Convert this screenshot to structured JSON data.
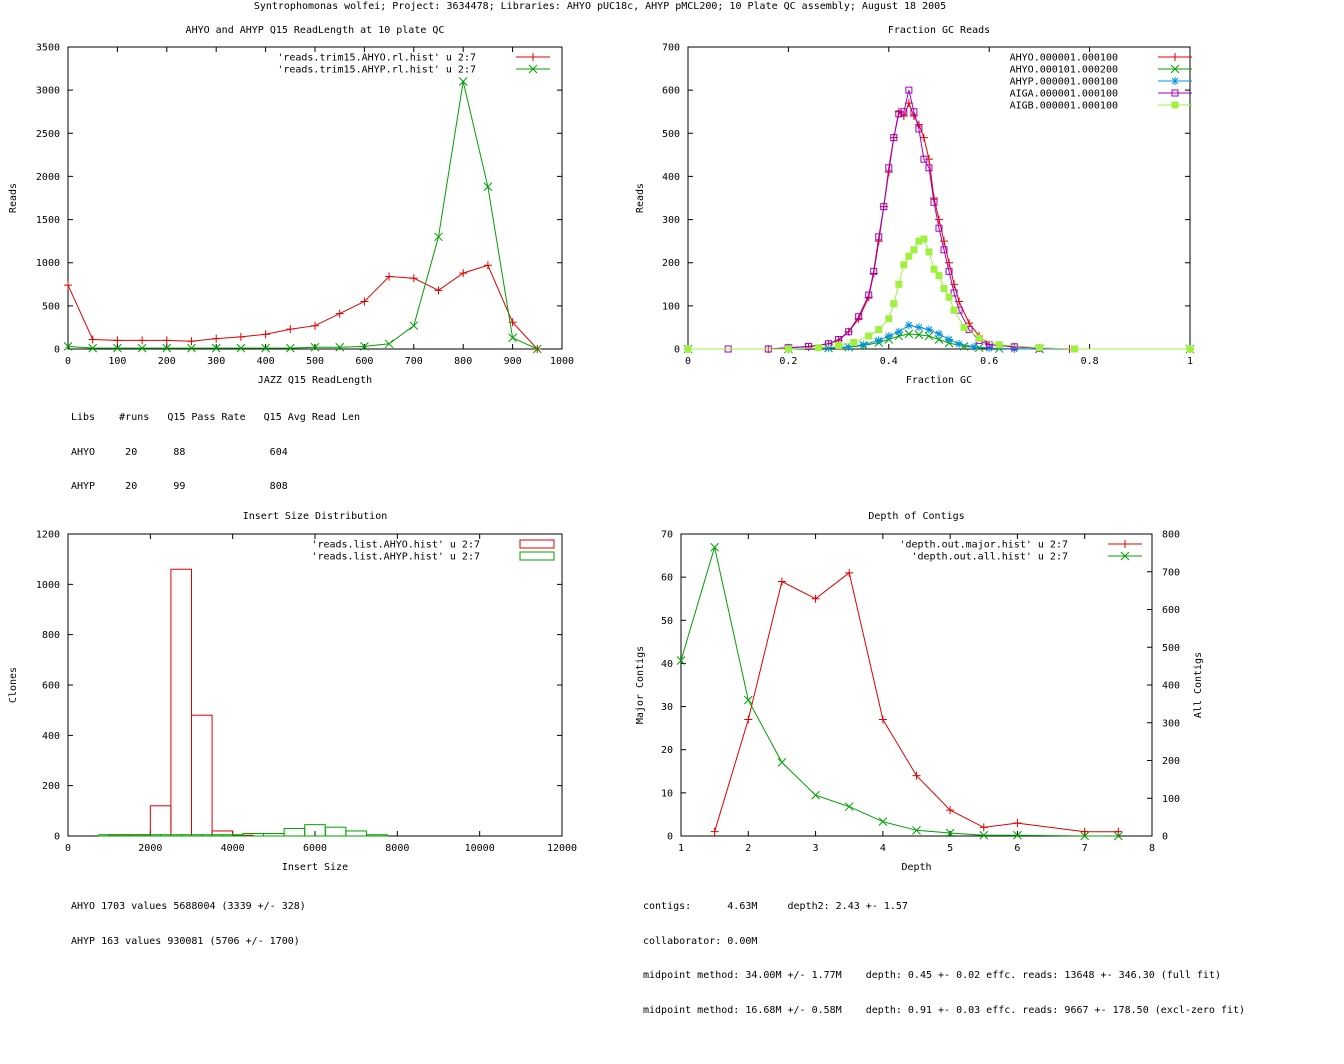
{
  "page_title": "Syntrophomonas wolfei; Project: 3634478; Libraries: AHYO pUC18c, AHYP pMCL200; 10 Plate QC assembly; August 18 2005",
  "colors": {
    "red": "#e00000",
    "green": "#00a000",
    "blue": "#0090e0",
    "magenta": "#a000c0",
    "lime": "#a0f040"
  },
  "chart_data": [
    {
      "id": "readlength",
      "type": "line",
      "title": "AHYO and AHYP Q15 ReadLength at 10 plate QC",
      "xlabel": "JAZZ Q15 ReadLength",
      "ylabel": "Reads",
      "xlim": [
        0,
        1000
      ],
      "ylim": [
        0,
        3500
      ],
      "xticks": [
        0,
        100,
        200,
        300,
        400,
        500,
        600,
        700,
        800,
        900,
        1000
      ],
      "yticks": [
        0,
        500,
        1000,
        1500,
        2000,
        2500,
        3000,
        3500
      ],
      "series": [
        {
          "name": "'reads.trim15.AHYO.rl.hist' u 2:7",
          "color": "#e00000",
          "marker": "plus",
          "x": [
            0,
            50,
            100,
            150,
            200,
            250,
            300,
            350,
            400,
            450,
            500,
            550,
            600,
            650,
            700,
            750,
            800,
            850,
            900,
            950
          ],
          "y": [
            740,
            110,
            100,
            100,
            100,
            90,
            120,
            140,
            170,
            230,
            270,
            410,
            550,
            840,
            820,
            680,
            880,
            970,
            310,
            0
          ]
        },
        {
          "name": "'reads.trim15.AHYP.rl.hist' u 2:7",
          "color": "#00a000",
          "marker": "cross",
          "x": [
            0,
            50,
            100,
            150,
            200,
            250,
            300,
            350,
            400,
            450,
            500,
            550,
            600,
            650,
            700,
            750,
            800,
            850,
            900,
            950
          ],
          "y": [
            30,
            10,
            10,
            10,
            10,
            10,
            10,
            10,
            10,
            10,
            20,
            20,
            30,
            60,
            270,
            1300,
            3100,
            1880,
            130,
            0
          ]
        }
      ],
      "info_lines": [
        "Libs    #runs   Q15 Pass Rate   Q15 Avg Read Len",
        "AHYO     20      88              604",
        "AHYP     20      99              808"
      ]
    },
    {
      "id": "gc",
      "type": "line",
      "title": "Fraction GC Reads",
      "xlabel": "Fraction GC",
      "ylabel": "Reads",
      "xlim": [
        0,
        1
      ],
      "ylim": [
        0,
        700
      ],
      "xticks": [
        0,
        0.2,
        0.4,
        0.6,
        0.8,
        1
      ],
      "yticks": [
        0,
        100,
        200,
        300,
        400,
        500,
        600,
        700
      ],
      "series": [
        {
          "name": "AHYO.000001.000100",
          "color": "#e00000",
          "marker": "plus",
          "x": [
            0.0,
            0.16,
            0.2,
            0.24,
            0.28,
            0.3,
            0.32,
            0.34,
            0.36,
            0.37,
            0.38,
            0.39,
            0.4,
            0.41,
            0.42,
            0.43,
            0.44,
            0.45,
            0.46,
            0.47,
            0.48,
            0.49,
            0.5,
            0.51,
            0.52,
            0.53,
            0.54,
            0.56,
            0.58,
            0.6,
            0.65,
            0.7,
            0.76,
            1.0
          ],
          "y": [
            0,
            0,
            3,
            5,
            12,
            20,
            40,
            70,
            120,
            175,
            250,
            330,
            410,
            490,
            550,
            540,
            570,
            540,
            520,
            490,
            440,
            350,
            300,
            250,
            200,
            150,
            110,
            60,
            30,
            10,
            5,
            2,
            0,
            0
          ]
        },
        {
          "name": "AHYO.000101.000200",
          "color": "#00a000",
          "marker": "cross",
          "x": [
            0.0,
            0.2,
            0.28,
            0.32,
            0.35,
            0.38,
            0.4,
            0.42,
            0.44,
            0.46,
            0.48,
            0.5,
            0.52,
            0.55,
            0.58,
            0.62,
            0.7,
            1.0
          ],
          "y": [
            0,
            0,
            2,
            4,
            8,
            15,
            22,
            30,
            35,
            33,
            30,
            22,
            14,
            6,
            3,
            1,
            0,
            0
          ]
        },
        {
          "name": "AHYP.000001.000100",
          "color": "#0090e0",
          "marker": "star",
          "x": [
            0.0,
            0.2,
            0.28,
            0.32,
            0.35,
            0.38,
            0.4,
            0.42,
            0.44,
            0.46,
            0.48,
            0.5,
            0.52,
            0.54,
            0.57,
            0.6,
            0.65,
            1.0
          ],
          "y": [
            0,
            0,
            2,
            5,
            10,
            20,
            30,
            40,
            55,
            50,
            45,
            35,
            22,
            12,
            5,
            2,
            0,
            0
          ]
        },
        {
          "name": "AIGA.000001.000100",
          "color": "#a000c0",
          "marker": "square",
          "x": [
            0.0,
            0.08,
            0.16,
            0.2,
            0.24,
            0.28,
            0.3,
            0.32,
            0.34,
            0.36,
            0.37,
            0.38,
            0.39,
            0.4,
            0.41,
            0.42,
            0.43,
            0.44,
            0.45,
            0.46,
            0.47,
            0.48,
            0.49,
            0.5,
            0.51,
            0.52,
            0.53,
            0.54,
            0.56,
            0.58,
            0.6,
            0.65,
            0.7,
            0.77,
            1.0
          ],
          "y": [
            0,
            0,
            0,
            3,
            6,
            12,
            22,
            40,
            75,
            125,
            180,
            260,
            330,
            420,
            490,
            545,
            550,
            600,
            550,
            510,
            440,
            420,
            340,
            280,
            230,
            180,
            130,
            90,
            45,
            20,
            10,
            5,
            2,
            0,
            0
          ]
        },
        {
          "name": "AIGB.000001.000100",
          "color": "#a0f040",
          "marker": "fsquare",
          "x": [
            0.0,
            0.2,
            0.26,
            0.3,
            0.33,
            0.36,
            0.38,
            0.4,
            0.41,
            0.42,
            0.43,
            0.44,
            0.45,
            0.46,
            0.47,
            0.48,
            0.49,
            0.5,
            0.51,
            0.52,
            0.53,
            0.55,
            0.58,
            0.62,
            0.7,
            0.77,
            1.0
          ],
          "y": [
            0,
            0,
            3,
            8,
            15,
            30,
            45,
            70,
            105,
            150,
            195,
            215,
            230,
            250,
            255,
            225,
            185,
            170,
            140,
            120,
            90,
            50,
            25,
            10,
            3,
            0,
            0
          ]
        }
      ]
    },
    {
      "id": "insert",
      "type": "bar",
      "title": "Insert Size Distribution",
      "xlabel": "Insert Size",
      "ylabel": "Clones",
      "xlim": [
        0,
        12000
      ],
      "ylim": [
        0,
        1200
      ],
      "xticks": [
        0,
        2000,
        4000,
        6000,
        8000,
        10000,
        12000
      ],
      "yticks": [
        0,
        200,
        400,
        600,
        800,
        1000,
        1200
      ],
      "bin_width": 500,
      "series": [
        {
          "name": "'reads.list.AHYO.hist' u 2:7",
          "color": "#e00000",
          "x": [
            1250,
            1750,
            2250,
            2750,
            3250,
            3750,
            4250
          ],
          "y": [
            5,
            5,
            120,
            1060,
            480,
            20,
            3
          ]
        },
        {
          "name": "'reads.list.AHYP.hist' u 2:7",
          "color": "#00a000",
          "x": [
            1000,
            1500,
            2000,
            2500,
            3000,
            3500,
            4000,
            4500,
            5000,
            5500,
            6000,
            6500,
            7000,
            7500
          ],
          "y": [
            5,
            5,
            5,
            5,
            5,
            5,
            5,
            10,
            10,
            30,
            45,
            35,
            20,
            5
          ]
        }
      ],
      "info_lines": [
        "AHYO 1703 values 5688004 (3339 +/- 328)",
        "AHYP 163 values 930081 (5706 +/- 1700)"
      ]
    },
    {
      "id": "depth",
      "type": "line",
      "title": "Depth of Contigs",
      "xlabel": "Depth",
      "ylabel": "Major Contigs",
      "y2label": "All Contigs",
      "xlim": [
        1,
        8
      ],
      "ylim": [
        0,
        70
      ],
      "y2lim": [
        0,
        800
      ],
      "xticks": [
        1,
        2,
        3,
        4,
        5,
        6,
        7,
        8
      ],
      "yticks": [
        0,
        10,
        20,
        30,
        40,
        50,
        60,
        70
      ],
      "y2ticks": [
        0,
        100,
        200,
        300,
        400,
        500,
        600,
        700,
        800
      ],
      "series": [
        {
          "name": "'depth.out.major.hist' u 2:7",
          "color": "#e00000",
          "marker": "plus",
          "axis": "y",
          "x": [
            1.5,
            2,
            2.5,
            3,
            3.5,
            4,
            4.5,
            5,
            5.5,
            6,
            7,
            7.5
          ],
          "y": [
            1,
            27,
            59,
            55,
            61,
            27,
            14,
            6,
            2,
            3,
            1,
            1
          ]
        },
        {
          "name": "'depth.out.all.hist' u 2:7",
          "color": "#00a000",
          "marker": "cross",
          "axis": "y2",
          "x": [
            1,
            1.5,
            2,
            2.5,
            3,
            3.5,
            4,
            4.5,
            5,
            5.5,
            6,
            7,
            7.5
          ],
          "y": [
            465,
            765,
            360,
            195,
            108,
            78,
            38,
            15,
            8,
            2,
            2,
            0,
            0
          ]
        }
      ],
      "info_lines": [
        "contigs:      4.63M     depth2: 2.43 +- 1.57",
        "collaborator: 0.00M",
        "midpoint method: 34.00M +/- 1.77M    depth: 0.45 +- 0.02 effc. reads: 13648 +- 346.30 (full fit)",
        "midpoint method: 16.68M +/- 0.58M    depth: 0.91 +- 0.03 effc. reads: 9667 +- 178.50 (excl-zero fit)"
      ]
    }
  ]
}
